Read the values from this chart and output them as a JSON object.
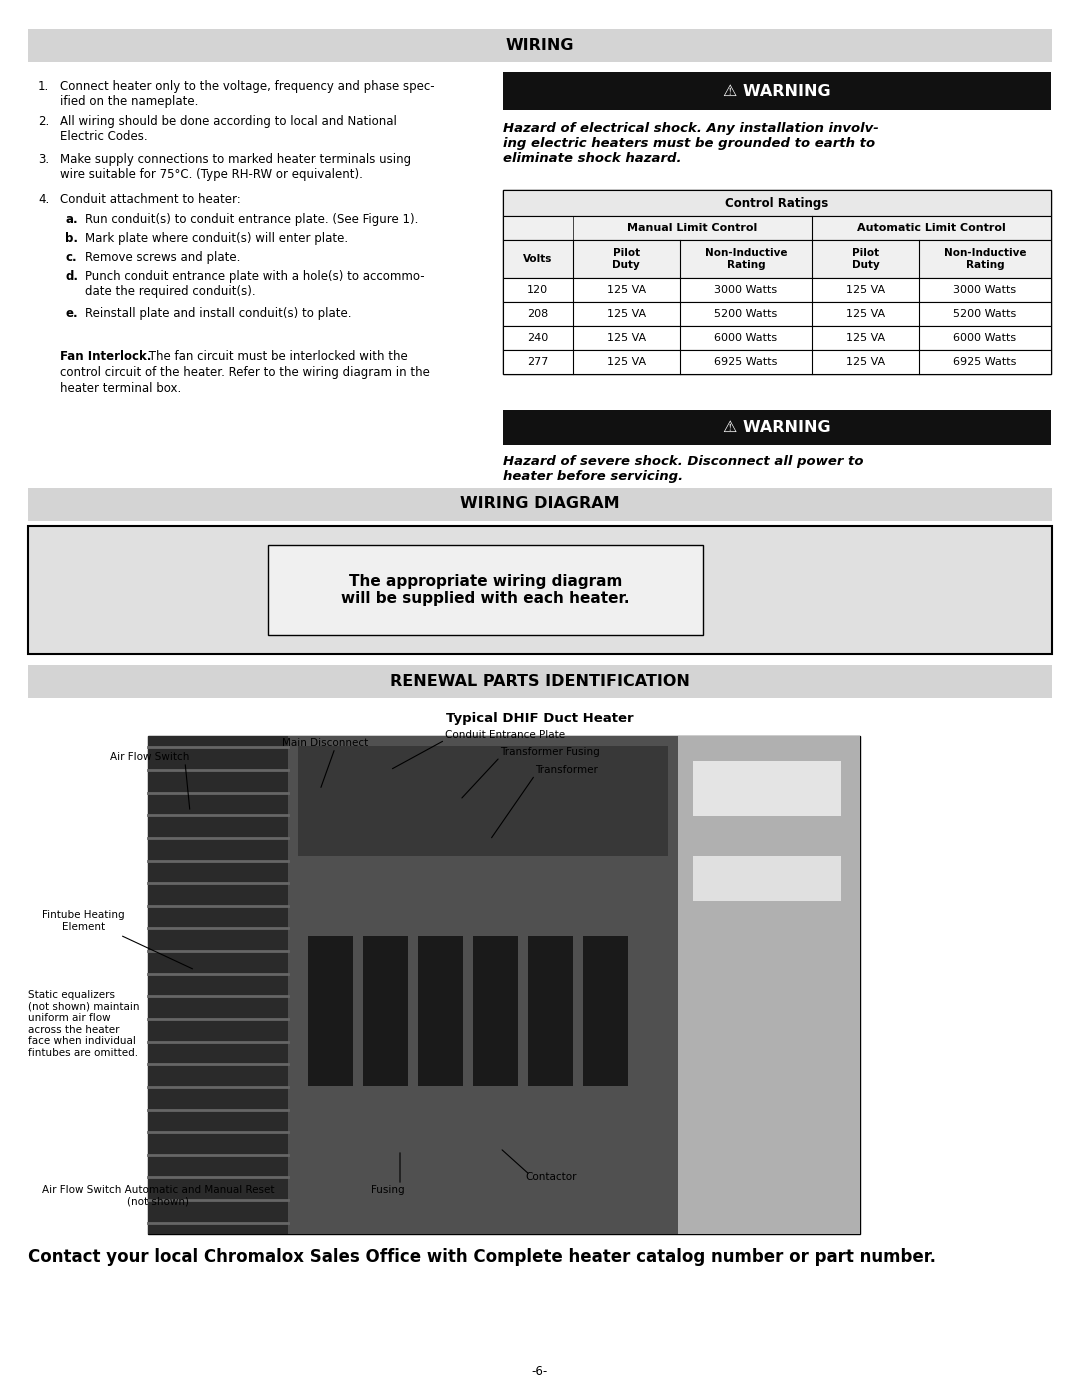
{
  "page_bg": "#ffffff",
  "wiring_header": "WIRING",
  "wiring_items": [
    {
      "num": "1.",
      "text": "Connect heater only to the voltage, frequency and phase spec-\nified on the nameplate."
    },
    {
      "num": "2.",
      "text": "All wiring should be done according to local and National\nElectric Codes."
    },
    {
      "num": "3.",
      "text": "Make supply connections to marked heater terminals using\nwire suitable for 75°C. (Type RH-RW or equivalent)."
    },
    {
      "num": "4.",
      "text": "Conduit attachment to heater:"
    }
  ],
  "wiring_sub_items": [
    {
      "letter": "a.",
      "text": "Run conduit(s) to conduit entrance plate. (See Figure 1)."
    },
    {
      "letter": "b.",
      "text": "Mark plate where conduit(s) will enter plate."
    },
    {
      "letter": "c.",
      "text": "Remove screws and plate."
    },
    {
      "letter": "d.",
      "text": "Punch conduit entrance plate with a hole(s) to accommo-\ndate the required conduit(s)."
    },
    {
      "letter": "e.",
      "text": "Reinstall plate and install conduit(s) to plate."
    }
  ],
  "fan_interlock_bold": "Fan Interlock.",
  "fan_interlock_rest": " The fan circuit must be interlocked with the\ncontrol circuit of the heater. Refer to the wiring diagram in the\nheater terminal box.",
  "warning1_header": "⚠ WARNING",
  "warning1_text": "Hazard of electrical shock. Any installation involv-\ning electric heaters must be grounded to earth to\neliminate shock hazard.",
  "control_ratings_title": "Control Ratings",
  "control_ratings_rows": [
    [
      "120",
      "125 VA",
      "3000 Watts",
      "125 VA",
      "3000 Watts"
    ],
    [
      "208",
      "125 VA",
      "5200 Watts",
      "125 VA",
      "5200 Watts"
    ],
    [
      "240",
      "125 VA",
      "6000 Watts",
      "125 VA",
      "6000 Watts"
    ],
    [
      "277",
      "125 VA",
      "6925 Watts",
      "125 VA",
      "6925 Watts"
    ]
  ],
  "warning2_header": "⚠ WARNING",
  "warning2_text": "Hazard of severe shock. Disconnect all power to\nheater before servicing.",
  "wiring_diagram_header": "WIRING DIAGRAM",
  "wiring_diagram_text": "The appropriate wiring diagram\nwill be supplied with each heater.",
  "renewal_header": "RENEWAL PARTS IDENTIFICATION",
  "typical_title": "Typical DHIF Duct Heater",
  "footer_contact": "Contact your local Chromalox Sales Office with Complete heater catalog number or part number.",
  "footer_page": "-6-",
  "header_bg": "#d4d4d4",
  "warning_bg": "#111111",
  "table_header_bg": "#e8e8e8",
  "table_subheader_bg": "#f0f0f0",
  "wiring_diagram_box_bg": "#e0e0e0",
  "wiring_diagram_inner_bg": "#f0f0f0"
}
